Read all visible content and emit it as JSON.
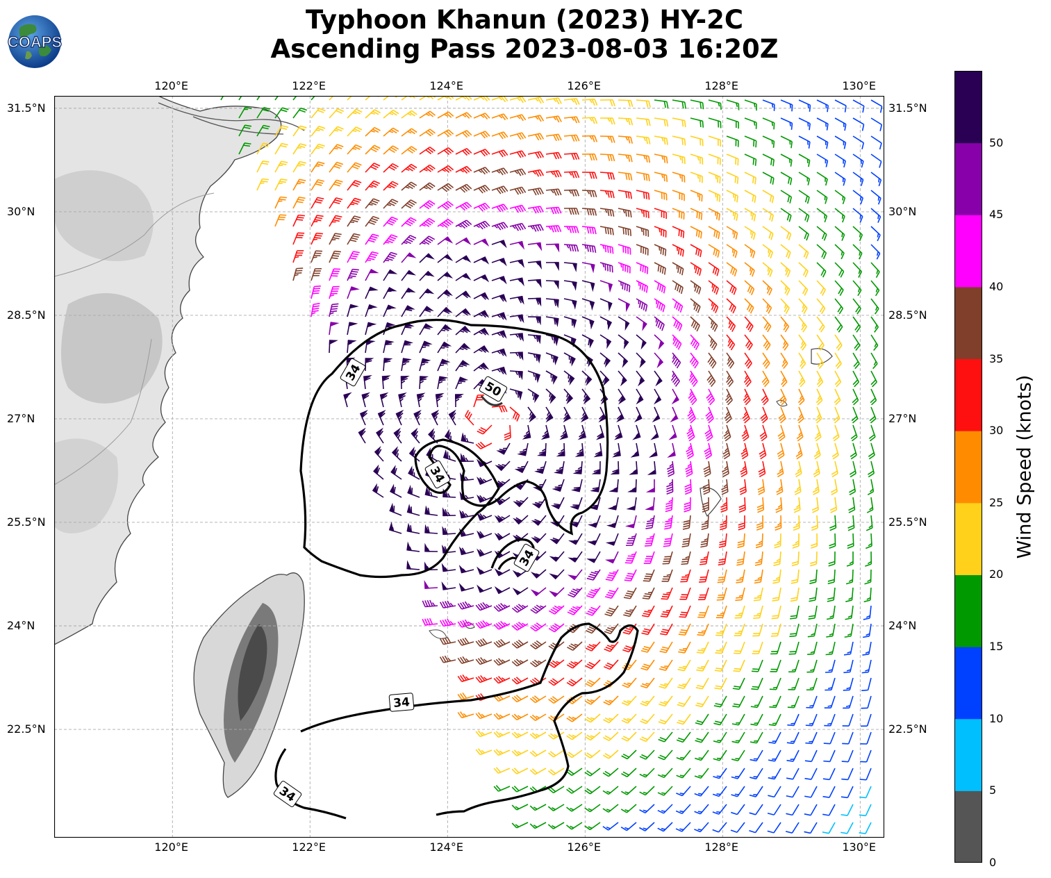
{
  "header": {
    "title_line1": "Typhoon Khanun (2023) HY-2C",
    "title_line2": "Ascending Pass 2023-08-03 16:20Z",
    "logo_text": "COAPS"
  },
  "map": {
    "lon_ticks": [
      "120°E",
      "122°E",
      "124°E",
      "126°E",
      "128°E",
      "130°E"
    ],
    "lat_ticks": [
      "31.5°N",
      "30°N",
      "28.5°N",
      "27°N",
      "25.5°N",
      "24°N",
      "22.5°N"
    ],
    "storm_center": {
      "lon": 124.6,
      "lat": 27.0
    },
    "contour_labels": [
      "34",
      "50",
      "34",
      "34",
      "34",
      "34"
    ]
  },
  "colorbar": {
    "title": "Wind Speed (knots)",
    "ticks": [
      "0",
      "5",
      "10",
      "15",
      "20",
      "25",
      "30",
      "35",
      "40",
      "45",
      "50"
    ],
    "colors": [
      "#555555",
      "#00bfff",
      "#0040ff",
      "#009900",
      "#ffd11a",
      "#ff8c00",
      "#ff1010",
      "#803f2a",
      "#ff00ff",
      "#8800aa",
      "#2a0055"
    ]
  }
}
